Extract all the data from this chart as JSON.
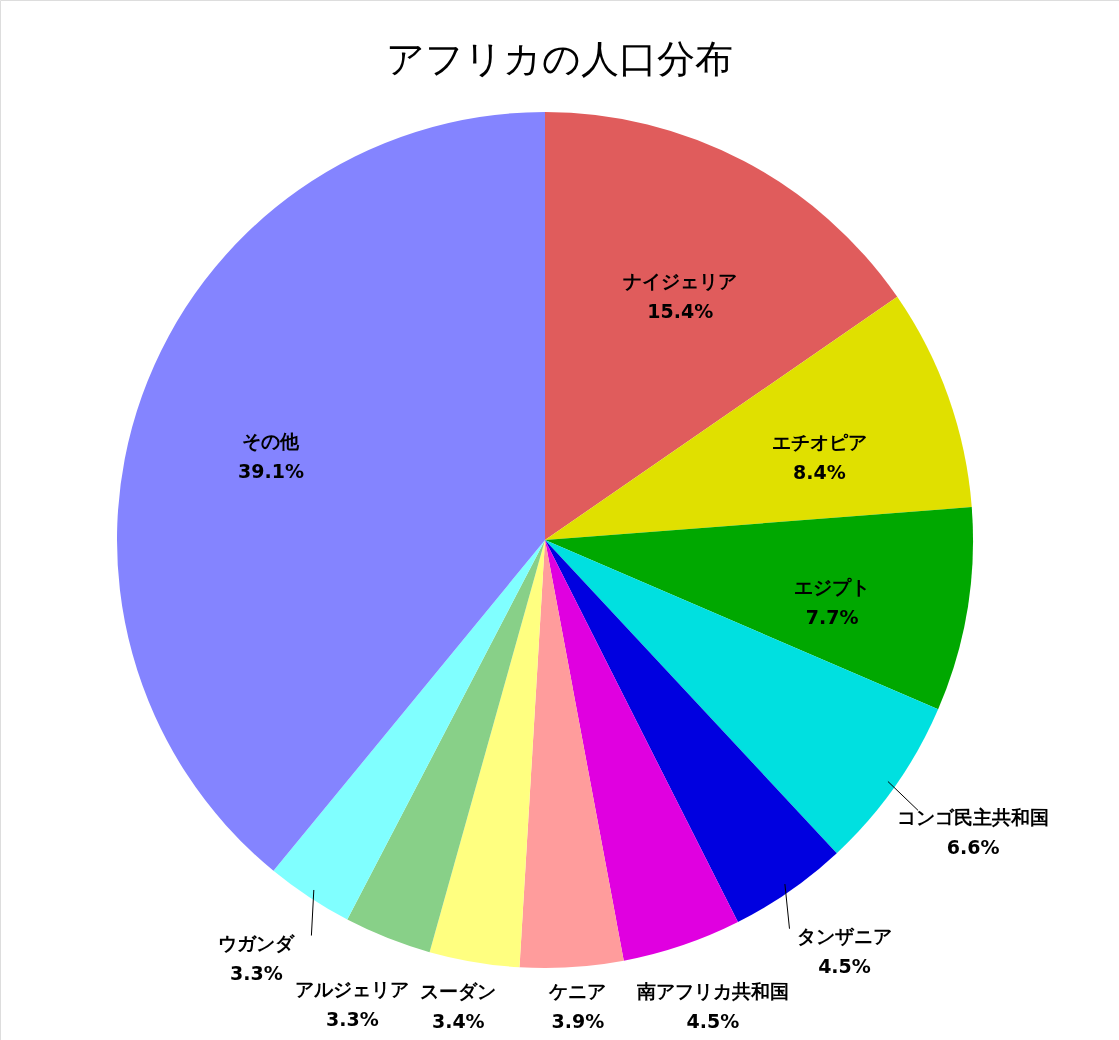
{
  "chart_data": {
    "type": "pie",
    "title": "アフリカの人口分布",
    "categories": [
      "ナイジェリア",
      "エチオピア",
      "エジプト",
      "コンゴ民主共和国",
      "タンザニア",
      "南アフリカ共和国",
      "ケニア",
      "スーダン",
      "アルジェリア",
      "ウガンダ",
      "その他"
    ],
    "values": [
      15.4,
      8.4,
      7.7,
      6.6,
      4.5,
      4.5,
      3.9,
      3.4,
      3.3,
      3.3,
      39.1
    ],
    "value_labels": [
      "15.4%",
      "8.4%",
      "7.7%",
      "6.6%",
      "4.5%",
      "4.5%",
      "3.9%",
      "3.4%",
      "3.3%",
      "3.3%",
      "39.1%"
    ],
    "colors": [
      "#e05c5c",
      "#e0e000",
      "#00a800",
      "#00e0e0",
      "#0000e0",
      "#e000e0",
      "#ff9c9c",
      "#ffff80",
      "#88d088",
      "#80ffff",
      "#8484ff"
    ],
    "legend": false
  }
}
